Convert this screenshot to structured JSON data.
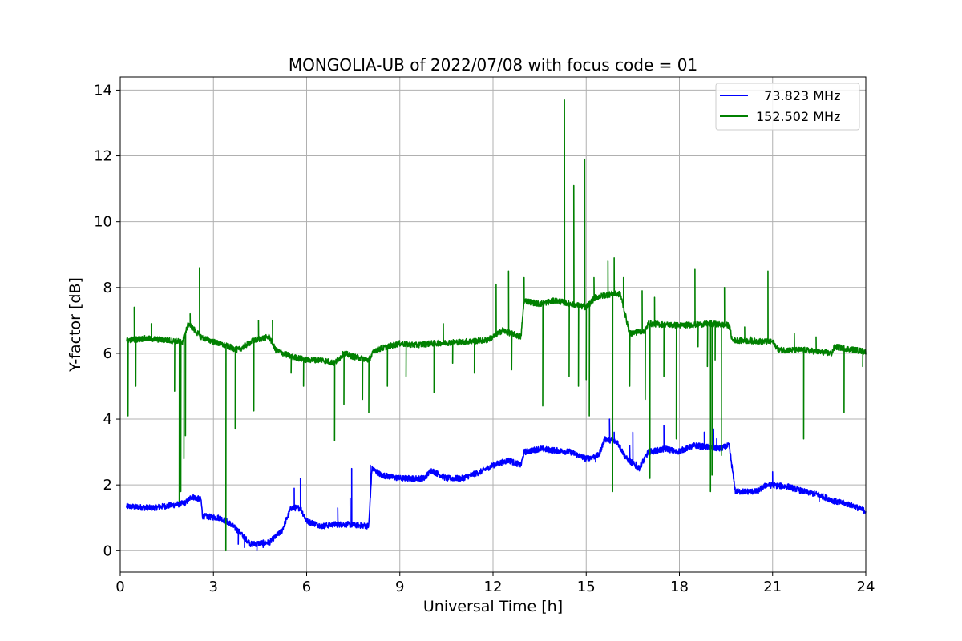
{
  "chart_data": {
    "type": "line",
    "title": "MONGOLIA-UB of 2022/07/08 with focus code = 01",
    "xlabel": "Universal Time [h]",
    "ylabel": "Y-factor [dB]",
    "xlim": [
      0,
      24
    ],
    "ylim": [
      -0.65,
      14.4
    ],
    "xticks": [
      0,
      3,
      6,
      9,
      12,
      15,
      18,
      21,
      24
    ],
    "yticks": [
      0,
      2,
      4,
      6,
      8,
      10,
      12,
      14
    ],
    "grid": true,
    "legend": "top-right",
    "series": [
      {
        "name": "  73.823 MHz",
        "color": "#0000ff",
        "x_start": 0.2,
        "x_end": 24,
        "anchors": [
          [
            0.2,
            1.35
          ],
          [
            1.0,
            1.3
          ],
          [
            1.8,
            1.4
          ],
          [
            2.1,
            1.45
          ],
          [
            2.3,
            1.65
          ],
          [
            2.6,
            1.55
          ],
          [
            2.65,
            1.05
          ],
          [
            3.2,
            1.0
          ],
          [
            3.5,
            0.85
          ],
          [
            3.8,
            0.6
          ],
          [
            4.2,
            0.2
          ],
          [
            4.8,
            0.25
          ],
          [
            5.2,
            0.6
          ],
          [
            5.5,
            1.3
          ],
          [
            5.8,
            1.3
          ],
          [
            6.0,
            0.9
          ],
          [
            6.5,
            0.75
          ],
          [
            6.9,
            0.8
          ],
          [
            7.3,
            0.8
          ],
          [
            8.0,
            0.75
          ],
          [
            8.1,
            2.5
          ],
          [
            8.4,
            2.3
          ],
          [
            9.0,
            2.2
          ],
          [
            9.8,
            2.2
          ],
          [
            10.0,
            2.45
          ],
          [
            10.5,
            2.2
          ],
          [
            11.0,
            2.2
          ],
          [
            11.6,
            2.4
          ],
          [
            12.0,
            2.6
          ],
          [
            12.5,
            2.75
          ],
          [
            12.9,
            2.6
          ],
          [
            13.0,
            3.0
          ],
          [
            13.5,
            3.1
          ],
          [
            14.5,
            3.0
          ],
          [
            15.0,
            2.8
          ],
          [
            15.4,
            2.9
          ],
          [
            15.6,
            3.4
          ],
          [
            16.0,
            3.3
          ],
          [
            16.3,
            2.8
          ],
          [
            16.7,
            2.5
          ],
          [
            17.0,
            3.0
          ],
          [
            17.6,
            3.1
          ],
          [
            17.9,
            3.0
          ],
          [
            18.5,
            3.2
          ],
          [
            19.3,
            3.1
          ],
          [
            19.6,
            3.2
          ],
          [
            19.8,
            1.8
          ],
          [
            20.5,
            1.8
          ],
          [
            20.8,
            2.0
          ],
          [
            21.5,
            1.95
          ],
          [
            22.0,
            1.8
          ],
          [
            22.5,
            1.7
          ],
          [
            23.0,
            1.5
          ],
          [
            23.5,
            1.4
          ],
          [
            24.0,
            1.2
          ]
        ],
        "spikes": [
          [
            3.8,
            0.2
          ],
          [
            4.0,
            0.1
          ],
          [
            4.4,
            0.0
          ],
          [
            4.6,
            0.1
          ],
          [
            5.8,
            2.2
          ],
          [
            5.6,
            1.9
          ],
          [
            7.4,
            1.6
          ],
          [
            7.45,
            2.5
          ],
          [
            7.0,
            1.3
          ],
          [
            8.05,
            2.6
          ],
          [
            11.7,
            2.5
          ],
          [
            15.3,
            2.7
          ],
          [
            15.75,
            4.0
          ],
          [
            15.9,
            3.6
          ],
          [
            16.4,
            3.2
          ],
          [
            16.5,
            3.6
          ],
          [
            17.5,
            3.8
          ],
          [
            18.8,
            3.6
          ],
          [
            19.2,
            3.4
          ],
          [
            19.1,
            3.7
          ],
          [
            16.6,
            2.7
          ],
          [
            21.0,
            2.4
          ],
          [
            22.5,
            1.5
          ]
        ],
        "noise": 0.09
      },
      {
        "name": "152.502 MHz",
        "color": "#008000",
        "x_start": 0.2,
        "x_end": 24,
        "anchors": [
          [
            0.2,
            6.4
          ],
          [
            0.8,
            6.45
          ],
          [
            1.5,
            6.4
          ],
          [
            2.0,
            6.35
          ],
          [
            2.2,
            6.9
          ],
          [
            2.6,
            6.5
          ],
          [
            3.0,
            6.35
          ],
          [
            3.5,
            6.2
          ],
          [
            3.8,
            6.1
          ],
          [
            4.3,
            6.4
          ],
          [
            4.8,
            6.5
          ],
          [
            5.0,
            6.1
          ],
          [
            5.5,
            5.9
          ],
          [
            6.0,
            5.8
          ],
          [
            6.5,
            5.8
          ],
          [
            6.9,
            5.7
          ],
          [
            7.2,
            6.0
          ],
          [
            7.5,
            5.9
          ],
          [
            8.0,
            5.8
          ],
          [
            8.2,
            6.1
          ],
          [
            9.0,
            6.3
          ],
          [
            9.5,
            6.25
          ],
          [
            10.0,
            6.3
          ],
          [
            11.0,
            6.35
          ],
          [
            11.8,
            6.4
          ],
          [
            12.0,
            6.5
          ],
          [
            12.3,
            6.7
          ],
          [
            12.9,
            6.5
          ],
          [
            13.0,
            7.6
          ],
          [
            13.5,
            7.5
          ],
          [
            14.0,
            7.6
          ],
          [
            15.0,
            7.4
          ],
          [
            15.3,
            7.7
          ],
          [
            15.8,
            7.8
          ],
          [
            16.1,
            7.8
          ],
          [
            16.4,
            6.6
          ],
          [
            16.9,
            6.7
          ],
          [
            17.0,
            6.9
          ],
          [
            18.0,
            6.85
          ],
          [
            19.0,
            6.9
          ],
          [
            19.6,
            6.85
          ],
          [
            19.7,
            6.4
          ],
          [
            21.0,
            6.35
          ],
          [
            21.2,
            6.1
          ],
          [
            22.0,
            6.1
          ],
          [
            22.9,
            6.0
          ],
          [
            23.0,
            6.2
          ],
          [
            24.0,
            6.05
          ]
        ],
        "spikes": [
          [
            0.25,
            4.1
          ],
          [
            0.45,
            7.4
          ],
          [
            0.5,
            5.0
          ],
          [
            1.0,
            6.9
          ],
          [
            1.75,
            4.85
          ],
          [
            1.9,
            1.5
          ],
          [
            1.95,
            1.8
          ],
          [
            2.05,
            2.8
          ],
          [
            2.1,
            3.5
          ],
          [
            2.25,
            7.2
          ],
          [
            2.55,
            8.6
          ],
          [
            3.4,
            0.0
          ],
          [
            3.7,
            3.7
          ],
          [
            4.3,
            4.25
          ],
          [
            4.45,
            7.0
          ],
          [
            4.9,
            7.0
          ],
          [
            5.5,
            5.4
          ],
          [
            5.9,
            5.0
          ],
          [
            6.9,
            3.35
          ],
          [
            7.2,
            4.45
          ],
          [
            7.8,
            4.6
          ],
          [
            8.0,
            4.2
          ],
          [
            8.6,
            5.0
          ],
          [
            9.2,
            5.3
          ],
          [
            10.1,
            4.8
          ],
          [
            10.4,
            6.9
          ],
          [
            10.7,
            5.7
          ],
          [
            11.4,
            5.4
          ],
          [
            12.1,
            8.1
          ],
          [
            12.5,
            8.5
          ],
          [
            12.6,
            5.5
          ],
          [
            13.0,
            8.3
          ],
          [
            13.6,
            4.4
          ],
          [
            14.3,
            13.7
          ],
          [
            14.45,
            5.3
          ],
          [
            14.6,
            11.1
          ],
          [
            14.75,
            5.0
          ],
          [
            14.95,
            11.9
          ],
          [
            15.0,
            5.2
          ],
          [
            15.1,
            4.1
          ],
          [
            15.25,
            8.3
          ],
          [
            15.7,
            8.8
          ],
          [
            15.85,
            1.8
          ],
          [
            15.9,
            8.9
          ],
          [
            16.2,
            8.3
          ],
          [
            16.4,
            5.0
          ],
          [
            16.8,
            7.9
          ],
          [
            16.9,
            4.6
          ],
          [
            17.05,
            2.2
          ],
          [
            17.2,
            7.7
          ],
          [
            17.5,
            5.3
          ],
          [
            17.9,
            3.4
          ],
          [
            18.5,
            8.55
          ],
          [
            18.6,
            6.2
          ],
          [
            18.9,
            5.6
          ],
          [
            19.0,
            1.8
          ],
          [
            19.05,
            2.3
          ],
          [
            19.15,
            5.8
          ],
          [
            19.35,
            2.9
          ],
          [
            19.45,
            8.0
          ],
          [
            20.1,
            6.8
          ],
          [
            20.3,
            6.5
          ],
          [
            20.85,
            8.5
          ],
          [
            21.7,
            6.6
          ],
          [
            22.0,
            3.4
          ],
          [
            22.4,
            6.5
          ],
          [
            22.7,
            6.1
          ],
          [
            23.3,
            4.2
          ],
          [
            23.9,
            5.6
          ]
        ],
        "noise": 0.09
      }
    ]
  }
}
